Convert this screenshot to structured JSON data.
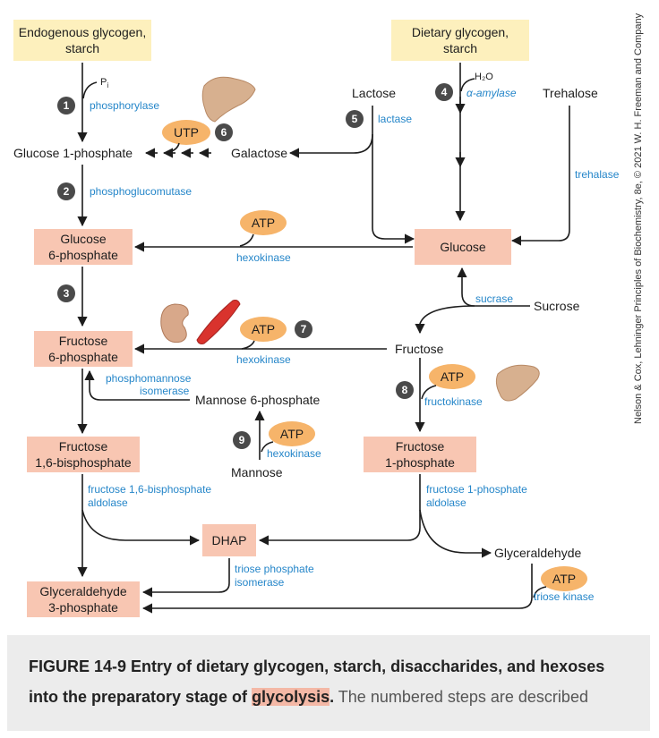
{
  "boxes": {
    "endogenous": [
      "Endogenous glycogen,",
      "starch"
    ],
    "dietary": [
      "Dietary glycogen,",
      "starch"
    ],
    "glucose6p": [
      "Glucose",
      "6-phosphate"
    ],
    "glucose": "Glucose",
    "fructose6p": [
      "Fructose",
      "6-phosphate"
    ],
    "fructose16bp": [
      "Fructose",
      "1,6-bisphosphate"
    ],
    "fructose1p": [
      "Fructose",
      "1-phosphate"
    ],
    "dhap": "DHAP",
    "gly3p": [
      "Glyceraldehyde",
      "3-phosphate"
    ]
  },
  "labels": {
    "pi": "P",
    "pi_sub": "i",
    "h2o": "H₂O",
    "lactose": "Lactose",
    "trehalose": "Trehalose",
    "glucose1p": "Glucose 1-phosphate",
    "galactose": "Galactose",
    "sucrose": "Sucrose",
    "fructose": "Fructose",
    "mannose6p": "Mannose 6-phosphate",
    "mannose": "Mannose",
    "glyceraldehyde": "Glyceraldehyde"
  },
  "enzymes": {
    "phosphorylase": "phosphorylase",
    "phosphoglucomutase": "phosphoglucomutase",
    "amylase": "α-amylase",
    "lactase": "lactase",
    "trehalase": "trehalase",
    "hexokinase1": "hexokinase",
    "sucrase": "sucrase",
    "hexokinase2": "hexokinase",
    "phosphomannose": [
      "phosphomannose",
      "isomerase"
    ],
    "fructokinase": "fructokinase",
    "hexokinase3": "hexokinase",
    "f16bp_aldolase": [
      "fructose 1,6-bisphosphate",
      "aldolase"
    ],
    "f1p_aldolase": [
      "fructose 1-phosphate",
      "aldolase"
    ],
    "tpi": [
      "triose phosphate",
      "isomerase"
    ],
    "triose_kinase": "triose kinase"
  },
  "cofactors": {
    "utp": "UTP",
    "atp1": "ATP",
    "atp2": "ATP",
    "atp3": "ATP",
    "atp4": "ATP",
    "atp5": "ATP"
  },
  "steps": [
    "1",
    "2",
    "3",
    "4",
    "5",
    "6",
    "7",
    "8",
    "9"
  ],
  "credit": "Nelson & Cox, Lehninger Principles of Biochemistry, 8e, © 2021 W. H. Freeman and Company",
  "caption": {
    "bold1": "FIGURE 14-9 Entry of dietary glycogen, starch, disaccharides, and hexoses",
    "bold2": "into the preparatory stage of",
    "highlight": "glycolysis",
    "period": ".",
    "rest": " The numbered steps are described"
  },
  "colors": {
    "yellow_box": "#fdf0bd",
    "pink_box": "#f8c6b2",
    "cofactor": "#f6b46a",
    "enzyme_text": "#2586c9",
    "step_circle": "#4a4a4a",
    "highlight": "#f4b8a6"
  }
}
